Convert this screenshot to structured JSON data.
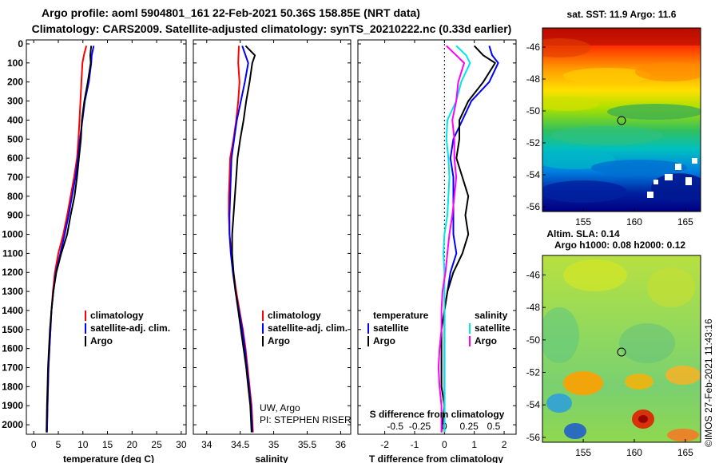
{
  "header": {
    "line1": "Argo profile: aoml 5904801_161 22-Feb-2021 50.36S 158.85E (NRT data)",
    "line2": "Climatology: CARS2009. Satellite-adjusted climatology: synTS_20210222.nc (0.33d earlier)"
  },
  "colors": {
    "climatology": "#ff0000",
    "satellite": "#0000ff",
    "argo": "#000000",
    "satellite_salinity": "#00e5e5",
    "argo_salinity": "#ff00ff"
  },
  "depth_axis": {
    "ticks": [
      "0",
      "100",
      "200",
      "300",
      "400",
      "500",
      "600",
      "700",
      "800",
      "900",
      "1000",
      "1100",
      "1200",
      "1300",
      "1400",
      "1500",
      "1600",
      "1700",
      "1800",
      "1900",
      "2000"
    ],
    "range": [
      0,
      2050
    ]
  },
  "chart_data": [
    {
      "type": "line",
      "name": "temperature",
      "xlabel": "temperature (deg C)",
      "xlim": [
        -1.5,
        31
      ],
      "xticks": [
        "0",
        "5",
        "10",
        "15",
        "20",
        "25",
        "30"
      ],
      "legend": [
        "climatology",
        "satellite-adj. clim.",
        "Argo"
      ],
      "series": [
        {
          "name": "climatology",
          "color": "#ff0000",
          "points": [
            [
              10.7,
              10
            ],
            [
              10.2,
              60
            ],
            [
              9.9,
              100
            ],
            [
              9.7,
              200
            ],
            [
              9.5,
              300
            ],
            [
              9.3,
              400
            ],
            [
              9.1,
              500
            ],
            [
              8.8,
              600
            ],
            [
              8.2,
              700
            ],
            [
              7.5,
              800
            ],
            [
              6.8,
              900
            ],
            [
              6.0,
              1000
            ],
            [
              5.0,
              1100
            ],
            [
              4.3,
              1200
            ],
            [
              3.9,
              1300
            ],
            [
              3.6,
              1400
            ],
            [
              3.4,
              1500
            ],
            [
              3.2,
              1600
            ],
            [
              3.0,
              1700
            ],
            [
              2.9,
              1800
            ],
            [
              2.8,
              1900
            ],
            [
              2.7,
              2040
            ]
          ]
        },
        {
          "name": "satellite-adj. clim.",
          "color": "#0000ff",
          "points": [
            [
              12.2,
              10
            ],
            [
              11.8,
              60
            ],
            [
              11.7,
              100
            ],
            [
              11.2,
              200
            ],
            [
              10.4,
              300
            ],
            [
              9.9,
              400
            ],
            [
              9.4,
              500
            ],
            [
              9.0,
              600
            ],
            [
              8.5,
              700
            ],
            [
              7.8,
              800
            ],
            [
              7.1,
              900
            ],
            [
              6.3,
              1000
            ],
            [
              5.4,
              1100
            ],
            [
              4.5,
              1200
            ],
            [
              4.0,
              1300
            ],
            [
              3.6,
              1400
            ],
            [
              3.4,
              1500
            ],
            [
              3.2,
              1600
            ],
            [
              3.0,
              1700
            ],
            [
              2.9,
              1800
            ],
            [
              2.8,
              1900
            ],
            [
              2.7,
              2040
            ]
          ]
        },
        {
          "name": "Argo",
          "color": "#000000",
          "points": [
            [
              11.7,
              10
            ],
            [
              11.5,
              60
            ],
            [
              11.6,
              100
            ],
            [
              11.0,
              200
            ],
            [
              10.3,
              300
            ],
            [
              9.8,
              400
            ],
            [
              9.6,
              500
            ],
            [
              9.2,
              600
            ],
            [
              8.8,
              700
            ],
            [
              8.3,
              800
            ],
            [
              7.5,
              900
            ],
            [
              6.8,
              1000
            ],
            [
              5.6,
              1100
            ],
            [
              4.6,
              1200
            ],
            [
              4.0,
              1300
            ],
            [
              3.6,
              1400
            ],
            [
              3.3,
              1500
            ],
            [
              3.1,
              1600
            ],
            [
              2.9,
              1700
            ],
            [
              2.8,
              1800
            ],
            [
              2.7,
              1900
            ],
            [
              2.6,
              2040
            ]
          ]
        }
      ]
    },
    {
      "type": "line",
      "name": "salinity",
      "xlabel": "salinity",
      "xlim": [
        33.8,
        36.15
      ],
      "xticks": [
        "34",
        "34.5",
        "35",
        "35.5",
        "36"
      ],
      "legend": [
        "climatology",
        "satellite-adj. clim.",
        "Argo"
      ],
      "attribution": [
        "UW, Argo",
        "PI: STEPHEN RISER"
      ],
      "series": [
        {
          "name": "climatology",
          "color": "#ff0000",
          "points": [
            [
              34.48,
              10
            ],
            [
              34.47,
              100
            ],
            [
              34.49,
              200
            ],
            [
              34.47,
              300
            ],
            [
              34.44,
              400
            ],
            [
              34.4,
              500
            ],
            [
              34.35,
              600
            ],
            [
              34.34,
              700
            ],
            [
              34.33,
              800
            ],
            [
              34.33,
              900
            ],
            [
              34.34,
              1000
            ],
            [
              34.37,
              1100
            ],
            [
              34.4,
              1200
            ],
            [
              34.44,
              1300
            ],
            [
              34.49,
              1400
            ],
            [
              34.54,
              1500
            ],
            [
              34.58,
              1600
            ],
            [
              34.61,
              1700
            ],
            [
              34.64,
              1800
            ],
            [
              34.67,
              1900
            ],
            [
              34.69,
              2040
            ]
          ]
        },
        {
          "name": "satellite-adj. clim.",
          "color": "#0000ff",
          "points": [
            [
              34.53,
              10
            ],
            [
              34.58,
              60
            ],
            [
              34.62,
              100
            ],
            [
              34.57,
              200
            ],
            [
              34.51,
              300
            ],
            [
              34.45,
              400
            ],
            [
              34.41,
              500
            ],
            [
              34.37,
              600
            ],
            [
              34.36,
              700
            ],
            [
              34.35,
              800
            ],
            [
              34.34,
              900
            ],
            [
              34.34,
              1000
            ],
            [
              34.36,
              1100
            ],
            [
              34.39,
              1200
            ],
            [
              34.43,
              1300
            ],
            [
              34.48,
              1400
            ],
            [
              34.53,
              1500
            ],
            [
              34.57,
              1600
            ],
            [
              34.6,
              1700
            ],
            [
              34.63,
              1800
            ],
            [
              34.66,
              1900
            ],
            [
              34.68,
              2040
            ]
          ]
        },
        {
          "name": "Argo",
          "color": "#000000",
          "points": [
            [
              34.58,
              10
            ],
            [
              34.72,
              60
            ],
            [
              34.68,
              100
            ],
            [
              34.64,
              200
            ],
            [
              34.59,
              300
            ],
            [
              34.55,
              400
            ],
            [
              34.5,
              500
            ],
            [
              34.46,
              600
            ],
            [
              34.44,
              700
            ],
            [
              34.42,
              800
            ],
            [
              34.4,
              900
            ],
            [
              34.38,
              1000
            ],
            [
              34.38,
              1100
            ],
            [
              34.4,
              1200
            ],
            [
              34.43,
              1300
            ],
            [
              34.47,
              1400
            ],
            [
              34.51,
              1500
            ],
            [
              34.55,
              1600
            ],
            [
              34.59,
              1700
            ],
            [
              34.62,
              1800
            ],
            [
              34.65,
              1900
            ],
            [
              34.67,
              2040
            ]
          ]
        }
      ]
    },
    {
      "type": "line",
      "name": "differences",
      "xlabel": "T difference from climatology",
      "xlabel2": "S difference from climatology",
      "xlim": [
        -2.9,
        2.4
      ],
      "xticks": [
        "-2",
        "-1",
        "0",
        "1",
        "2"
      ],
      "xticks2": [
        "-0.5",
        "-0.25",
        "0",
        "0.25",
        "0.5"
      ],
      "legend_left_title": "temperature",
      "legend_right_title": "salinity",
      "legend_left": [
        "satellite",
        "Argo"
      ],
      "legend_right": [
        "satellite",
        "Argo"
      ],
      "series": [
        {
          "name": "temperature satellite",
          "color": "#0000ff",
          "points": [
            [
              1.5,
              10
            ],
            [
              1.6,
              60
            ],
            [
              1.8,
              100
            ],
            [
              1.5,
              200
            ],
            [
              0.9,
              300
            ],
            [
              0.6,
              400
            ],
            [
              0.3,
              500
            ],
            [
              0.2,
              600
            ],
            [
              0.3,
              700
            ],
            [
              0.3,
              800
            ],
            [
              0.3,
              900
            ],
            [
              0.3,
              1000
            ],
            [
              0.4,
              1100
            ],
            [
              0.2,
              1200
            ],
            [
              0.1,
              1300
            ],
            [
              0.0,
              1400
            ],
            [
              0.0,
              1500
            ],
            [
              0.0,
              1600
            ],
            [
              0.0,
              1700
            ],
            [
              0.0,
              1800
            ],
            [
              0.0,
              1900
            ],
            [
              0.0,
              2040
            ]
          ]
        },
        {
          "name": "temperature Argo",
          "color": "#000000",
          "points": [
            [
              1.0,
              10
            ],
            [
              1.3,
              60
            ],
            [
              1.7,
              100
            ],
            [
              1.3,
              200
            ],
            [
              0.8,
              300
            ],
            [
              0.5,
              400
            ],
            [
              0.5,
              500
            ],
            [
              0.4,
              600
            ],
            [
              0.6,
              700
            ],
            [
              0.8,
              800
            ],
            [
              0.7,
              900
            ],
            [
              0.8,
              1000
            ],
            [
              0.6,
              1100
            ],
            [
              0.3,
              1200
            ],
            [
              0.1,
              1300
            ],
            [
              0.0,
              1400
            ],
            [
              -0.1,
              1500
            ],
            [
              -0.1,
              1600
            ],
            [
              -0.1,
              1700
            ],
            [
              -0.1,
              1800
            ],
            [
              0.0,
              1900
            ],
            [
              -0.1,
              2040
            ]
          ]
        },
        {
          "name": "salinity satellite",
          "color": "#00e5e5",
          "points": [
            [
              0.12,
              10
            ],
            [
              0.22,
              60
            ],
            [
              0.26,
              100
            ],
            [
              0.17,
              200
            ],
            [
              0.12,
              300
            ],
            [
              0.03,
              400
            ],
            [
              0.02,
              500
            ],
            [
              0.04,
              600
            ],
            [
              0.05,
              700
            ],
            [
              0.04,
              800
            ],
            [
              0.03,
              900
            ],
            [
              0.0,
              1000
            ],
            [
              -0.01,
              1100
            ],
            [
              0.0,
              1200
            ],
            [
              0.0,
              1300
            ],
            [
              0.0,
              1400
            ],
            [
              0.0,
              1500
            ],
            [
              0.0,
              1600
            ],
            [
              0.0,
              1700
            ],
            [
              0.0,
              1800
            ],
            [
              0.0,
              1900
            ],
            [
              0.0,
              2040
            ]
          ]
        },
        {
          "name": "salinity Argo",
          "color": "#ff00ff",
          "points": [
            [
              0.02,
              10
            ],
            [
              0.12,
              60
            ],
            [
              0.2,
              100
            ],
            [
              0.14,
              200
            ],
            [
              0.12,
              300
            ],
            [
              0.08,
              400
            ],
            [
              0.1,
              500
            ],
            [
              0.1,
              600
            ],
            [
              0.12,
              700
            ],
            [
              0.1,
              800
            ],
            [
              0.08,
              900
            ],
            [
              0.05,
              1000
            ],
            [
              0.03,
              1100
            ],
            [
              0.01,
              1200
            ],
            [
              -0.02,
              1300
            ],
            [
              -0.03,
              1400
            ],
            [
              -0.03,
              1500
            ],
            [
              -0.05,
              1600
            ],
            [
              -0.06,
              1700
            ],
            [
              -0.05,
              1800
            ],
            [
              -0.03,
              1900
            ],
            [
              -0.03,
              2040
            ]
          ]
        }
      ]
    },
    {
      "type": "heatmap",
      "name": "sst map",
      "title": "sat. SST: 11.9 Argo: 11.6",
      "lon_range": [
        151,
        166.5
      ],
      "lat_range": [
        -56.3,
        -44.8
      ],
      "xticks": [
        "155",
        "160",
        "165"
      ],
      "yticks": [
        "-46",
        "-48",
        "-50",
        "-52",
        "-54",
        "-56"
      ],
      "marker": [
        158.85,
        -50.36
      ]
    },
    {
      "type": "heatmap",
      "name": "sla map",
      "title": "Altim. SLA: 0.14",
      "title2": "Argo h1000: 0.08 h2000: 0.12",
      "lon_range": [
        151,
        166.5
      ],
      "lat_range": [
        -56.3,
        -44.8
      ],
      "xticks": [
        "155",
        "160",
        "165"
      ],
      "yticks": [
        "-46",
        "-48",
        "-50",
        "-52",
        "-54",
        "-56"
      ],
      "marker": [
        158.85,
        -50.36
      ]
    }
  ],
  "footer_stamp": "©IMOS 27-Feb-2021 11:43:16"
}
